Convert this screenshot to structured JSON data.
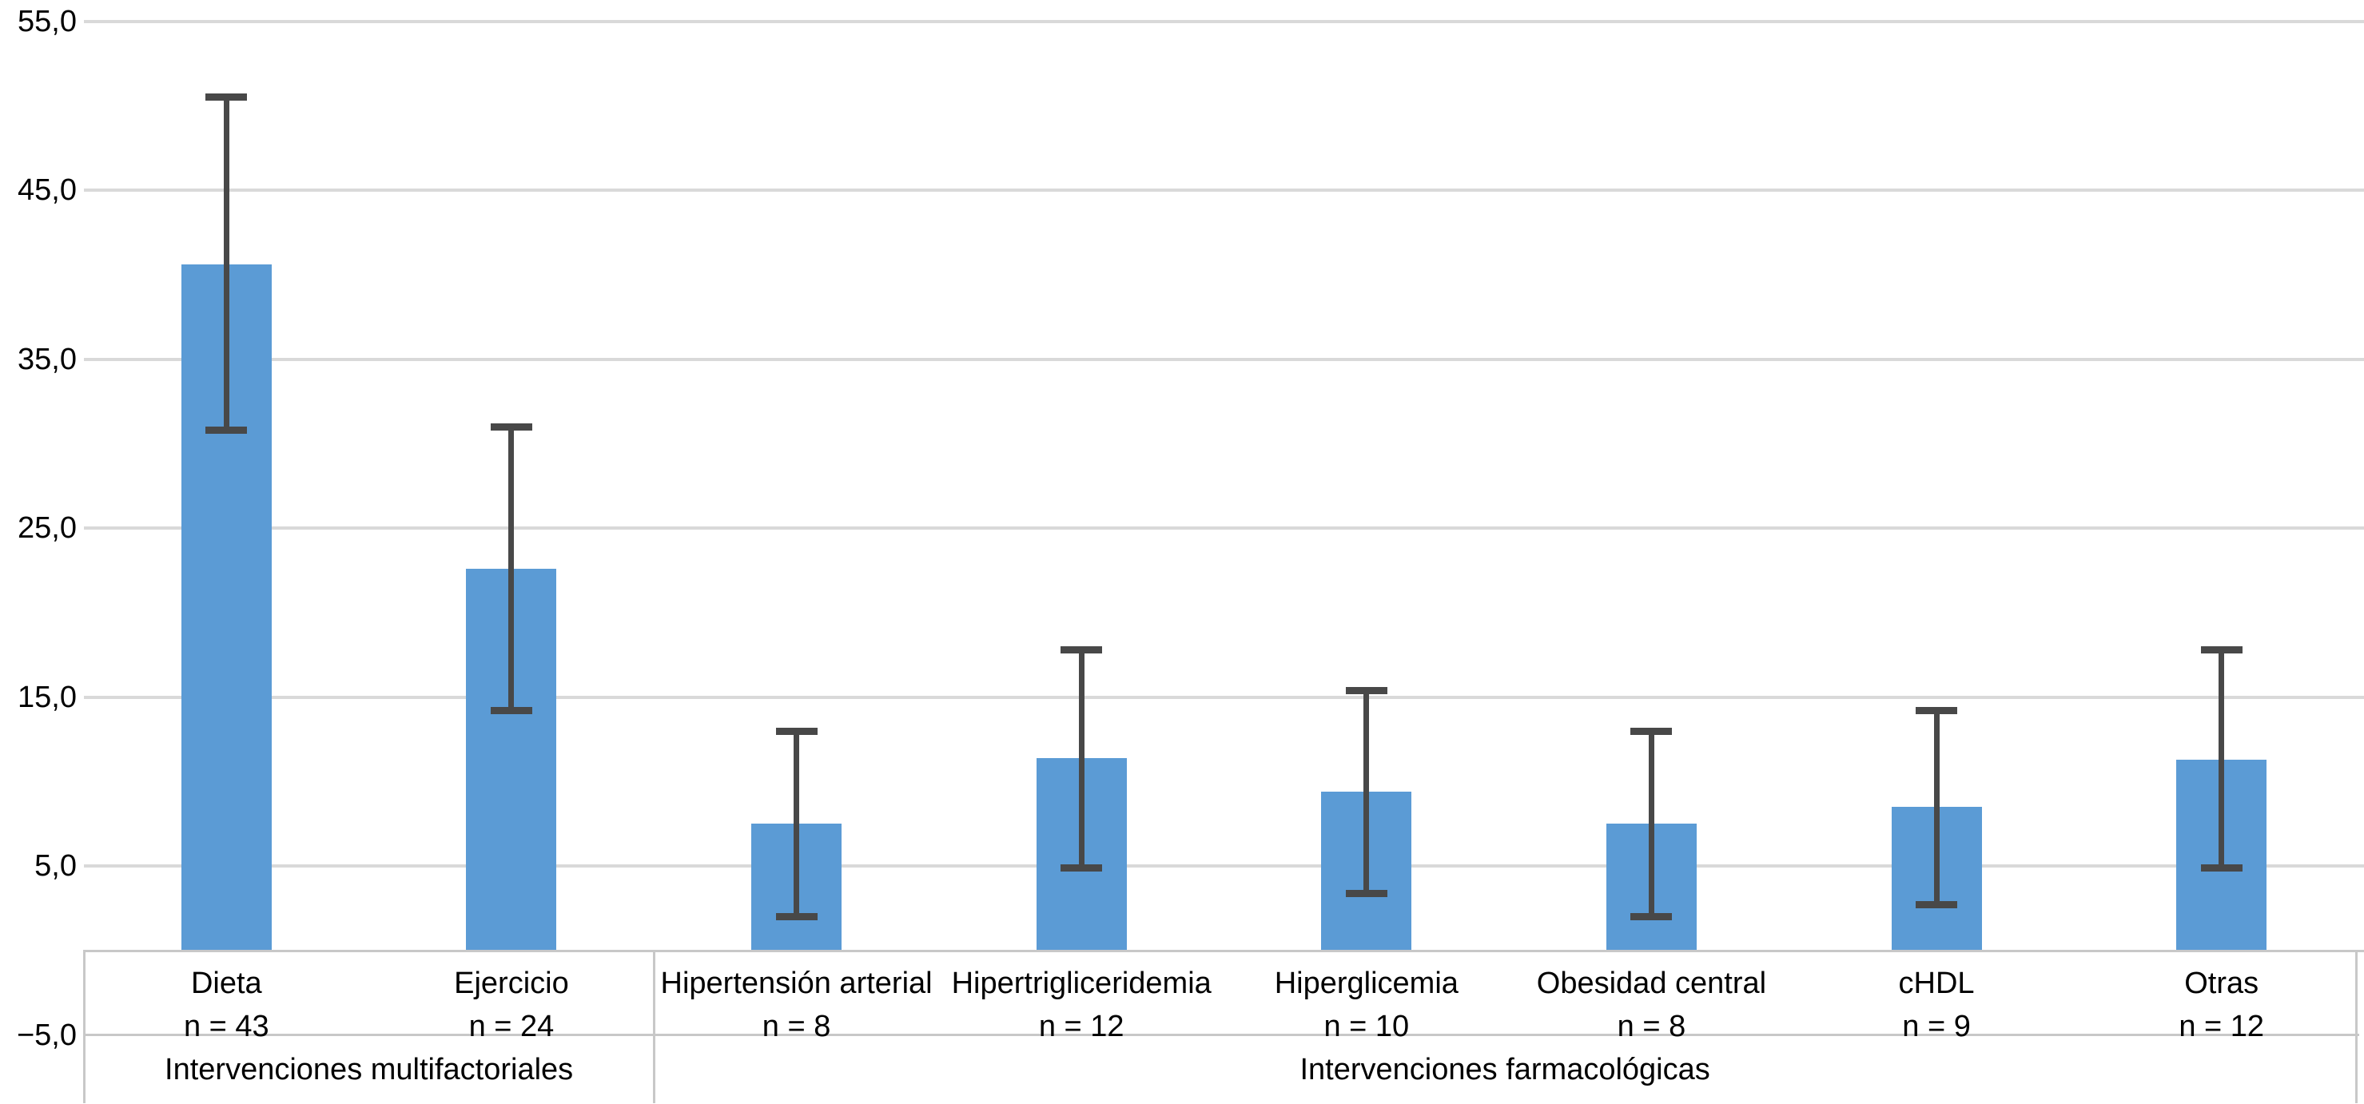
{
  "chart_data": {
    "type": "bar",
    "title": "",
    "xlabel": "",
    "ylabel": "",
    "legend": "none",
    "grid": true,
    "error_bars": true,
    "y_axis": {
      "min": -5.0,
      "max": 55.0,
      "tick_step": 10.0,
      "decimal_style": "comma",
      "ticks": [
        {
          "value": 55,
          "label": "55,0"
        },
        {
          "value": 45,
          "label": "45,0"
        },
        {
          "value": 35,
          "label": "35,0"
        },
        {
          "value": 25,
          "label": "25,0"
        },
        {
          "value": 15,
          "label": "15,0"
        },
        {
          "value": 5,
          "label": "5,0"
        },
        {
          "value": -5,
          "label": "−5,0"
        }
      ],
      "gridlines_at": [
        55,
        45,
        35,
        25,
        15,
        5
      ],
      "baseline_value": 0
    },
    "categories": [
      "Dieta",
      "Ejercicio",
      "Hipertensión arterial",
      "Hipertrigliceridemia",
      "Hiperglicemia",
      "Obesidad central",
      "cHDL",
      "Otras"
    ],
    "series": [
      {
        "name": "bars",
        "points": [
          {
            "category": "Dieta",
            "n_label": "n = 43",
            "value": 40.6,
            "err_low": 30.8,
            "err_high": 50.5
          },
          {
            "category": "Ejercicio",
            "n_label": "n = 24",
            "value": 22.6,
            "err_low": 14.2,
            "err_high": 31.0
          },
          {
            "category": "Hipertensión arterial",
            "n_label": "n = 8",
            "value": 7.5,
            "err_low": 2.0,
            "err_high": 13.0
          },
          {
            "category": "Hipertrigliceridemia",
            "n_label": "n = 12",
            "value": 11.4,
            "err_low": 4.9,
            "err_high": 17.8
          },
          {
            "category": "Hiperglicemia",
            "n_label": "n = 10",
            "value": 9.4,
            "err_low": 3.4,
            "err_high": 15.4
          },
          {
            "category": "Obesidad central",
            "n_label": "n = 8",
            "value": 7.5,
            "err_low": 2.0,
            "err_high": 13.0
          },
          {
            "category": "cHDL",
            "n_label": "n = 9",
            "value": 8.5,
            "err_low": 2.7,
            "err_high": 14.2
          },
          {
            "category": "Otras",
            "n_label": "n = 12",
            "value": 11.3,
            "err_low": 4.9,
            "err_high": 17.8
          }
        ]
      }
    ],
    "groups": [
      {
        "label": "Intervenciones multifactoriales",
        "start_index": 0,
        "end_index": 1
      },
      {
        "label": "Intervenciones farmacológicas",
        "start_index": 2,
        "end_index": 7
      }
    ],
    "colors": {
      "bar": "#5B9BD5",
      "error_bar": "#484848",
      "gridline": "#D9D9D9",
      "table_border": "#C8C8C8",
      "text": "#000000",
      "background": "#FFFFFF"
    }
  }
}
